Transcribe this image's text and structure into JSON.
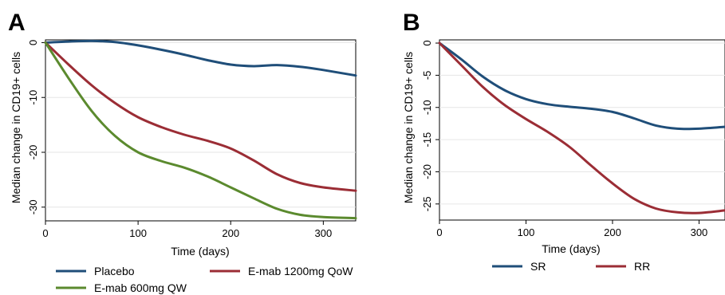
{
  "chart_data": [
    {
      "panel_label": "A",
      "type": "line",
      "xlabel": "Time (days)",
      "ylabel": "Median change in CD19+ cells",
      "xlim": [
        0,
        335
      ],
      "ylim": [
        -32.5,
        0.5
      ],
      "xticks": [
        0,
        100,
        200,
        300
      ],
      "yticks": [
        0,
        -10,
        -20,
        -30
      ],
      "grid": "horizontal",
      "legend_placement": "bottom",
      "series": [
        {
          "name": "Placebo",
          "color": "#1f4e79",
          "x": [
            0,
            25,
            50,
            75,
            100,
            125,
            150,
            175,
            200,
            225,
            250,
            275,
            300,
            335
          ],
          "y": [
            0,
            0.2,
            0.3,
            0.1,
            -0.5,
            -1.3,
            -2.2,
            -3.2,
            -4.0,
            -4.3,
            -4.1,
            -4.4,
            -5.0,
            -6.0
          ]
        },
        {
          "name": "E-mab 1200mg QoW",
          "color": "#9b2d35",
          "x": [
            0,
            25,
            50,
            75,
            100,
            125,
            150,
            175,
            200,
            225,
            250,
            275,
            300,
            335
          ],
          "y": [
            0,
            -4.0,
            -7.8,
            -11.0,
            -13.6,
            -15.4,
            -16.8,
            -17.9,
            -19.3,
            -21.5,
            -24.0,
            -25.6,
            -26.4,
            -27.0
          ]
        },
        {
          "name": "E-mab 600mg QW",
          "color": "#5b8a2e",
          "x": [
            0,
            25,
            50,
            75,
            100,
            125,
            150,
            175,
            200,
            225,
            250,
            275,
            300,
            335
          ],
          "y": [
            0,
            -6.5,
            -12.5,
            -17.0,
            -20.0,
            -21.6,
            -22.8,
            -24.4,
            -26.4,
            -28.4,
            -30.3,
            -31.4,
            -31.8,
            -32.0
          ]
        }
      ]
    },
    {
      "panel_label": "B",
      "type": "line",
      "xlabel": "Time (days)",
      "ylabel": "Median change in CD19+ cells",
      "xlim": [
        0,
        330
      ],
      "ylim": [
        -27.5,
        0.5
      ],
      "xticks": [
        0,
        100,
        200,
        300
      ],
      "yticks": [
        0,
        -5,
        -10,
        -15,
        -20,
        -25
      ],
      "grid": "horizontal",
      "legend_placement": "bottom",
      "series": [
        {
          "name": "SR",
          "color": "#1f4e79",
          "x": [
            0,
            25,
            50,
            75,
            100,
            125,
            150,
            175,
            200,
            225,
            250,
            275,
            300,
            330
          ],
          "y": [
            0,
            -2.5,
            -5.2,
            -7.3,
            -8.7,
            -9.5,
            -9.9,
            -10.2,
            -10.7,
            -11.7,
            -12.8,
            -13.3,
            -13.3,
            -13.0
          ]
        },
        {
          "name": "RR",
          "color": "#9b2d35",
          "x": [
            0,
            25,
            50,
            75,
            100,
            125,
            150,
            175,
            200,
            225,
            250,
            275,
            300,
            330
          ],
          "y": [
            0,
            -3.4,
            -6.8,
            -9.6,
            -11.8,
            -13.8,
            -16.1,
            -19.0,
            -21.8,
            -24.2,
            -25.7,
            -26.3,
            -26.4,
            -26.0
          ]
        }
      ]
    }
  ]
}
